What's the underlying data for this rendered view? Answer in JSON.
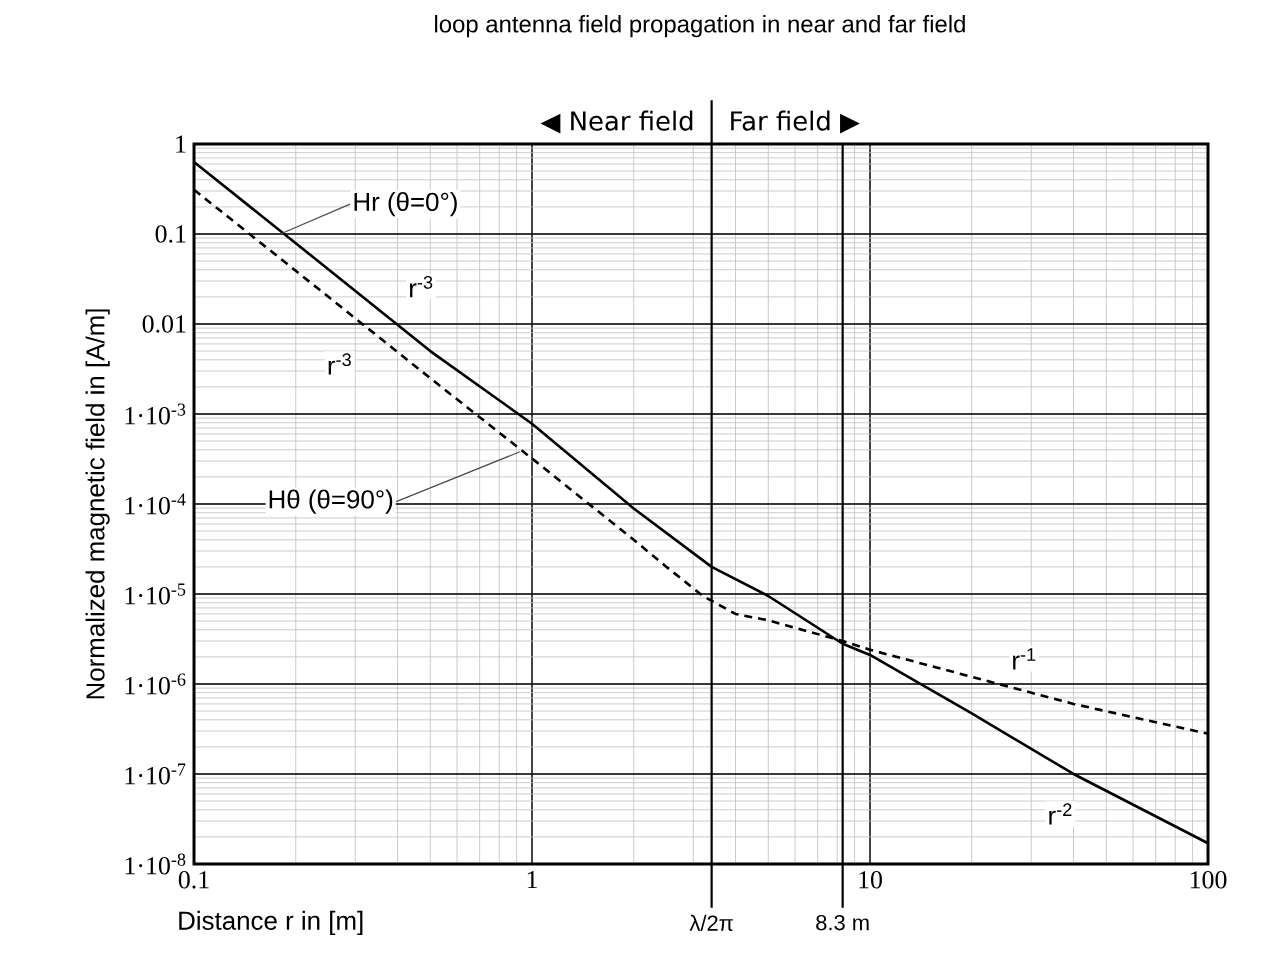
{
  "chart_data": {
    "type": "line",
    "title": "loop antenna field propagation in near and far field",
    "xlabel": "Distance r in [m]",
    "ylabel": "Normalized magnetic field in [A/m]",
    "log": "xy",
    "grid": true,
    "xlim": [
      0.1,
      100
    ],
    "ylim": [
      1e-08,
      1
    ],
    "xticks": [
      0.1,
      1,
      10,
      100
    ],
    "yticks": [
      {
        "value": 1e-08,
        "label": "1·10$^{-8}$"
      },
      {
        "value": 1e-07,
        "label": "1·10$^{-7}$"
      },
      {
        "value": 1e-06,
        "label": "1·10$^{-6}$"
      },
      {
        "value": 1e-05,
        "label": "1·10$^{-5}$"
      },
      {
        "value": 0.0001,
        "label": "1·10$^{-4}$"
      },
      {
        "value": 0.001,
        "label": "1·10$^{-3}$"
      },
      0.01,
      0.1,
      1
    ],
    "series": [
      {
        "color": "#000000",
        "line_style": "solid",
        "x": [
          0.1,
          0.2,
          0.5,
          1,
          2,
          3.4,
          5,
          8.3,
          10,
          20,
          40,
          100
        ],
        "values": [
          0.63,
          0.079,
          0.005,
          0.00078,
          8.9e-05,
          2e-05,
          9.5e-06,
          2.8e-06,
          2.1e-06,
          4.7e-07,
          1e-07,
          1.7e-08
        ]
      },
      {
        "color": "#000000",
        "line_style": "dashed",
        "x": [
          0.1,
          0.2,
          0.5,
          1,
          2,
          2.5,
          3.2,
          4,
          5,
          8.3,
          10,
          20,
          40,
          100
        ],
        "values": [
          0.31,
          0.039,
          0.0025,
          0.00032,
          4e-05,
          2e-05,
          9.5e-06,
          6e-06,
          5.1e-06,
          3e-06,
          2.4e-06,
          1.2e-06,
          6e-07,
          2.8e-07
        ]
      }
    ],
    "ref_lines": [
      {
        "axis": "x",
        "value": 3.4,
        "label": "λ/2π"
      },
      {
        "axis": "x",
        "value": 8.3,
        "label": "8.3 m"
      }
    ],
    "annotations": [
      {
        "text": "Hr (θ=0°)",
        "x": 0.18,
        "y": 0.1
      },
      {
        "text": "Hθ (θ=90°)",
        "x": 0.92,
        "y": 0.00038
      },
      {
        "text": "r$^{-3}$",
        "x": 0.47,
        "y": 0.026
      },
      {
        "text": "r$^{-3}$",
        "x": 0.27,
        "y": 0.0036
      },
      {
        "text": "r$^{-1}$",
        "x": 28.6,
        "y": 1.9e-06
      },
      {
        "text": "r$^{-2}$",
        "x": 36.6,
        "y": 3.6e-08
      },
      "◀ Near field",
      "Far field ▶"
    ]
  }
}
